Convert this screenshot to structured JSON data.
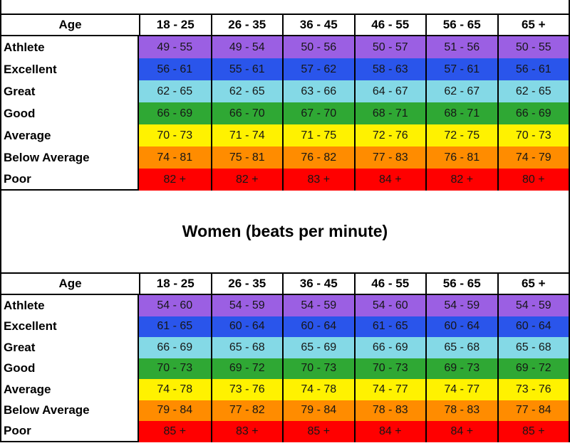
{
  "border_color": "#000000",
  "chart_data": [
    {
      "type": "table",
      "title": "",
      "columns": [
        "Age",
        "18 - 25",
        "26 - 35",
        "36 - 45",
        "46 - 55",
        "56 - 65",
        "65 +"
      ],
      "rows": [
        {
          "label": "Athlete",
          "color": "#9B5FE3",
          "values": [
            "49 - 55",
            "49 - 54",
            "50 - 56",
            "50 - 57",
            "51 - 56",
            "50 - 55"
          ]
        },
        {
          "label": "Excellent",
          "color": "#2A55EB",
          "values": [
            "56 - 61",
            "55 - 61",
            "57 - 62",
            "58 - 63",
            "57 - 61",
            "56 - 61"
          ]
        },
        {
          "label": "Great",
          "color": "#84D9E6",
          "values": [
            "62 - 65",
            "62 - 65",
            "63 - 66",
            "64 - 67",
            "62 - 67",
            "62 - 65"
          ]
        },
        {
          "label": "Good",
          "color": "#2FA834",
          "values": [
            "66 - 69",
            "66 - 70",
            "67 - 70",
            "68 - 71",
            "68 - 71",
            "66 - 69"
          ]
        },
        {
          "label": "Average",
          "color": "#FFF200",
          "values": [
            "70 - 73",
            "71 - 74",
            "71 - 75",
            "72 - 76",
            "72 - 75",
            "70 - 73"
          ]
        },
        {
          "label": "Below Average",
          "color": "#FF8C00",
          "values": [
            "74 - 81",
            "75 - 81",
            "76 - 82",
            "77 - 83",
            "76 - 81",
            "74 - 79"
          ]
        },
        {
          "label": "Poor",
          "color": "#FF0000",
          "values": [
            "82 +",
            "82 +",
            "83 +",
            "84 +",
            "82 +",
            "80 +"
          ]
        }
      ]
    },
    {
      "type": "table",
      "title": "Women (beats per minute)",
      "columns": [
        "Age",
        "18 - 25",
        "26 - 35",
        "36 - 45",
        "46 - 55",
        "56 - 65",
        "65 +"
      ],
      "rows": [
        {
          "label": "Athlete",
          "color": "#9B5FE3",
          "values": [
            "54 - 60",
            "54 - 59",
            "54 - 59",
            "54 - 60",
            "54 - 59",
            "54 - 59"
          ]
        },
        {
          "label": "Excellent",
          "color": "#2A55EB",
          "values": [
            "61 - 65",
            "60 - 64",
            "60 - 64",
            "61 - 65",
            "60 - 64",
            "60 - 64"
          ]
        },
        {
          "label": "Great",
          "color": "#84D9E6",
          "values": [
            "66 - 69",
            "65 - 68",
            "65 - 69",
            "66 - 69",
            "65 - 68",
            "65 - 68"
          ]
        },
        {
          "label": "Good",
          "color": "#2FA834",
          "values": [
            "70 - 73",
            "69 - 72",
            "70 - 73",
            "70 - 73",
            "69 - 73",
            "69 - 72"
          ]
        },
        {
          "label": "Average",
          "color": "#FFF200",
          "values": [
            "74 - 78",
            "73 - 76",
            "74 - 78",
            "74 - 77",
            "74 - 77",
            "73 - 76"
          ]
        },
        {
          "label": "Below Average",
          "color": "#FF8C00",
          "values": [
            "79 - 84",
            "77 - 82",
            "79 - 84",
            "78 - 83",
            "78 - 83",
            "77 - 84"
          ]
        },
        {
          "label": "Poor",
          "color": "#FF0000",
          "values": [
            "85 +",
            "83 +",
            "85 +",
            "84 +",
            "84 +",
            "85 +"
          ]
        }
      ]
    }
  ]
}
